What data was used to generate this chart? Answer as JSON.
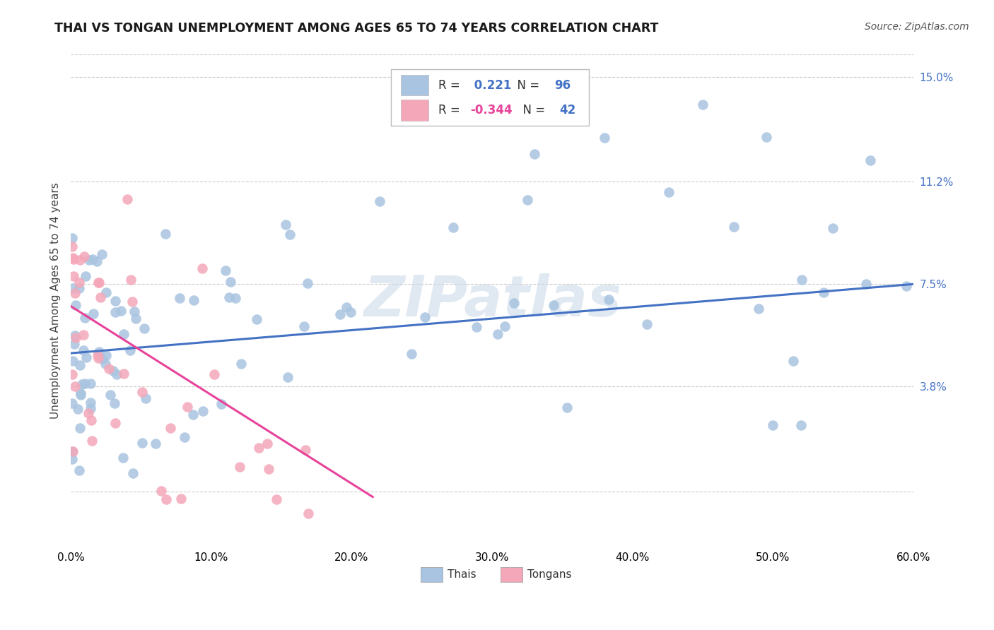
{
  "title": "THAI VS TONGAN UNEMPLOYMENT AMONG AGES 65 TO 74 YEARS CORRELATION CHART",
  "source": "Source: ZipAtlas.com",
  "ylabel_label": "Unemployment Among Ages 65 to 74 years",
  "xmin": 0.0,
  "xmax": 0.6,
  "ymin": -0.02,
  "ymax": 0.158,
  "ytick_vals": [
    0.038,
    0.075,
    0.112,
    0.15
  ],
  "ytick_labels": [
    "3.8%",
    "7.5%",
    "11.2%",
    "15.0%"
  ],
  "xtick_vals": [
    0.0,
    0.1,
    0.2,
    0.3,
    0.4,
    0.5,
    0.6
  ],
  "xtick_labels": [
    "0.0%",
    "10.0%",
    "20.0%",
    "30.0%",
    "40.0%",
    "50.0%",
    "60.0%"
  ],
  "thai_R": 0.221,
  "thai_N": 96,
  "tongan_R": -0.344,
  "tongan_N": 42,
  "thai_color": "#a8c4e0",
  "tongan_color": "#f4a7b9",
  "thai_line_color": "#4472c4",
  "tongan_line_color": "#e8439a",
  "watermark": "ZIPatlas",
  "background_color": "#ffffff",
  "grid_color": "#cccccc",
  "thai_line_x0": 0.0,
  "thai_line_x1": 0.6,
  "thai_line_y0": 0.05,
  "thai_line_y1": 0.075,
  "tongan_line_x0": 0.0,
  "tongan_line_x1": 0.215,
  "tongan_line_y0": 0.067,
  "tongan_line_y1": -0.002
}
